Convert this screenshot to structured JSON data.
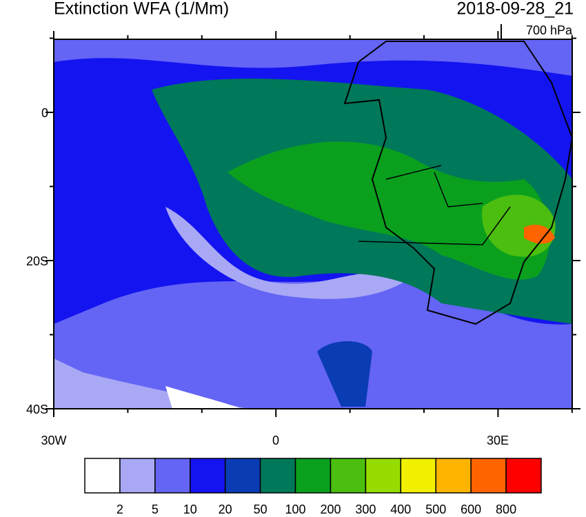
{
  "header": {
    "title": "Extinction WFA (1/Mm)",
    "time": "2018-09-28_21",
    "level": "700 hPa"
  },
  "map": {
    "lat_labels": [
      "0",
      "20S",
      "40S"
    ],
    "lon_labels": [
      "30W",
      "0",
      "30E"
    ]
  },
  "colorbar": {
    "colors": [
      "#ffffff",
      "#a8a8f5",
      "#6464f5",
      "#1414f0",
      "#0a3cb4",
      "#00785a",
      "#0aa01e",
      "#4bbe0f",
      "#96dc00",
      "#f0f000",
      "#ffb400",
      "#ff6400",
      "#ff0000"
    ],
    "labels": [
      2,
      5,
      10,
      20,
      50,
      100,
      200,
      300,
      400,
      500,
      600,
      800
    ]
  }
}
